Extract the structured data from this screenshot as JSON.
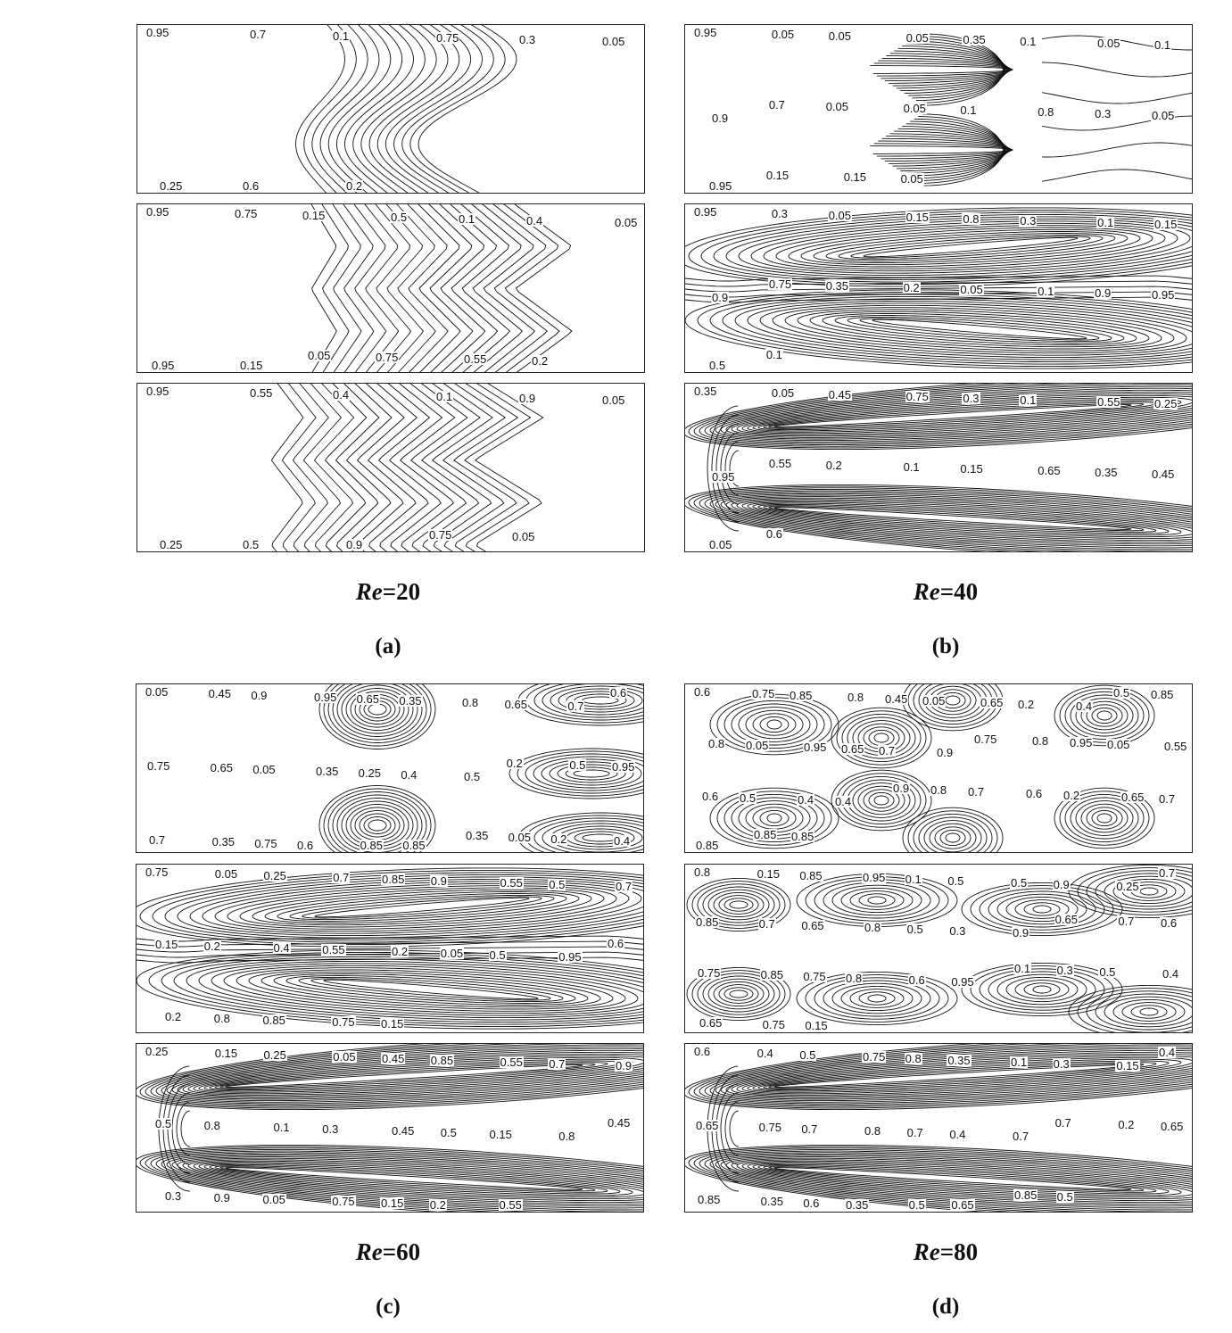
{
  "panels": [
    {
      "id": "a",
      "re_prefix": "Re",
      "re_value": "=20",
      "sub": "(a)",
      "frames": [
        {
          "labels": [
            "0.95",
            "0.7",
            "0.1",
            "0.75",
            "0.3",
            "0.05",
            "0.25",
            "0.6",
            "0.2"
          ]
        },
        {
          "labels": [
            "0.95",
            "0.75",
            "0.15",
            "0.5",
            "0.1",
            "0.4",
            "0.05",
            "0.95",
            "0.15",
            "0.05",
            "0.75",
            "0.55",
            "0.2"
          ]
        },
        {
          "labels": [
            "0.95",
            "0.55",
            "0.4",
            "0.1",
            "0.9",
            "0.05",
            "0.25",
            "0.5",
            "0.9",
            "0.75",
            "0.05"
          ]
        }
      ]
    },
    {
      "id": "b",
      "re_prefix": "Re",
      "re_value": "=40",
      "sub": "(b)",
      "frames": [
        {
          "labels": [
            "0.95",
            "0.05",
            "0.05",
            "0.05",
            "0.35",
            "0.1",
            "0.05",
            "0.1",
            "0.9",
            "0.7",
            "0.05",
            "0.05",
            "0.1",
            "0.8",
            "0.3",
            "0.05",
            "0.95",
            "0.15",
            "0.15",
            "0.05"
          ]
        },
        {
          "labels": [
            "0.95",
            "0.3",
            "0.05",
            "0.15",
            "0.8",
            "0.3",
            "0.1",
            "0.15",
            "0.9",
            "0.75",
            "0.35",
            "0.2",
            "0.05",
            "0.1",
            "0.9",
            "0.95",
            "0.5",
            "0.1"
          ]
        },
        {
          "labels": [
            "0.35",
            "0.05",
            "0.45",
            "0.75",
            "0.3",
            "0.1",
            "0.55",
            "0.25",
            "0.95",
            "0.55",
            "0.2",
            "0.1",
            "0.15",
            "0.65",
            "0.35",
            "0.45",
            "0.05",
            "0.6"
          ]
        }
      ]
    },
    {
      "id": "c",
      "re_prefix": "Re",
      "re_value": "=60",
      "sub": "(c)",
      "frames": [
        {
          "labels": [
            "0.05",
            "0.45",
            "0.9",
            "0.95",
            "0.65",
            "0.35",
            "0.8",
            "0.65",
            "0.7",
            "0.6",
            "0.75",
            "0.65",
            "0.05",
            "0.35",
            "0.25",
            "0.4",
            "0.5",
            "0.2",
            "0.5",
            "0.95",
            "0.7",
            "0.35",
            "0.75",
            "0.6",
            "0.85",
            "0.85",
            "0.35",
            "0.05",
            "0.2",
            "0.4"
          ]
        },
        {
          "labels": [
            "0.75",
            "0.05",
            "0.25",
            "0.7",
            "0.85",
            "0.9",
            "0.55",
            "0.5",
            "0.7",
            "0.15",
            "0.2",
            "0.4",
            "0.55",
            "0.2",
            "0.05",
            "0.5",
            "0.95",
            "0.6",
            "0.2",
            "0.8",
            "0.85",
            "0.75",
            "0.15"
          ]
        },
        {
          "labels": [
            "0.25",
            "0.15",
            "0.25",
            "0.05",
            "0.45",
            "0.85",
            "0.55",
            "0.7",
            "0.9",
            "0.5",
            "0.8",
            "0.1",
            "0.3",
            "0.45",
            "0.5",
            "0.15",
            "0.8",
            "0.45",
            "0.3",
            "0.9",
            "0.05",
            "0.75",
            "0.15",
            "0.2",
            "0.55"
          ]
        }
      ]
    },
    {
      "id": "d",
      "re_prefix": "Re",
      "re_value": "=80",
      "sub": "(d)",
      "frames": [
        {
          "labels": [
            "0.6",
            "0.75",
            "0.85",
            "0.8",
            "0.45",
            "0.05",
            "0.65",
            "0.2",
            "0.4",
            "0.5",
            "0.85",
            "0.8",
            "0.05",
            "0.95",
            "0.65",
            "0.7",
            "0.9",
            "0.75",
            "0.8",
            "0.95",
            "0.05",
            "0.55",
            "0.6",
            "0.5",
            "0.4",
            "0.4",
            "0.9",
            "0.8",
            "0.7",
            "0.6",
            "0.2",
            "0.65",
            "0.7",
            "0.85",
            "0.85",
            "0.85"
          ]
        },
        {
          "labels": [
            "0.8",
            "0.15",
            "0.85",
            "0.95",
            "0.1",
            "0.5",
            "0.5",
            "0.9",
            "0.25",
            "0.7",
            "0.85",
            "0.7",
            "0.65",
            "0.8",
            "0.5",
            "0.3",
            "0.9",
            "0.65",
            "0.7",
            "0.6",
            "0.75",
            "0.85",
            "0.75",
            "0.8",
            "0.6",
            "0.95",
            "0.1",
            "0.3",
            "0.5",
            "0.4",
            "0.65",
            "0.75",
            "0.15"
          ]
        },
        {
          "labels": [
            "0.6",
            "0.4",
            "0.5",
            "0.75",
            "0.8",
            "0.35",
            "0.1",
            "0.3",
            "0.15",
            "0.4",
            "0.65",
            "0.75",
            "0.7",
            "0.8",
            "0.7",
            "0.4",
            "0.7",
            "0.7",
            "0.2",
            "0.65",
            "0.85",
            "0.35",
            "0.6",
            "0.35",
            "0.5",
            "0.65",
            "0.85",
            "0.5"
          ]
        }
      ]
    }
  ]
}
